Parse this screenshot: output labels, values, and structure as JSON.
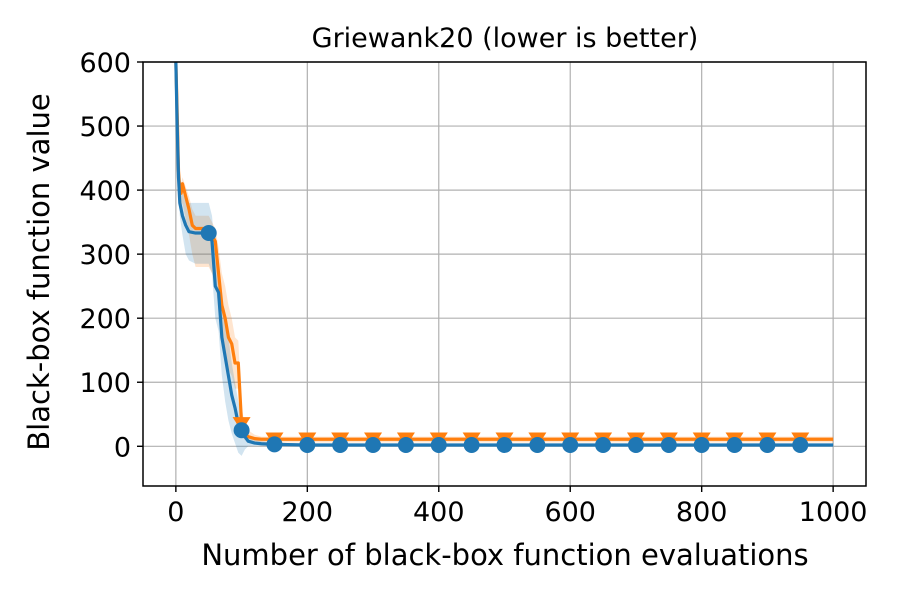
{
  "chart_data": {
    "type": "line",
    "title": "Griewank20 (lower is better)",
    "xlabel": "Number of black-box function evaluations",
    "ylabel": "Black-box function value",
    "xlim": [
      -50,
      1050
    ],
    "ylim": [
      -62,
      600
    ],
    "xticks": [
      0,
      200,
      400,
      600,
      800,
      1000
    ],
    "yticks": [
      0,
      100,
      200,
      300,
      400,
      500,
      600
    ],
    "grid": true,
    "legend": "none",
    "series": [
      {
        "color": "#ff7f0e",
        "marker": "triangle-down",
        "x": [
          0,
          2,
          4,
          6,
          8,
          10,
          20,
          25,
          30,
          40,
          50,
          55,
          60,
          65,
          70,
          75,
          80,
          85,
          90,
          95,
          100,
          105,
          110,
          120,
          130,
          150,
          200,
          300,
          400,
          500,
          600,
          700,
          800,
          900,
          1000
        ],
        "y": [
          600,
          520,
          430,
          400,
          395,
          410,
          370,
          345,
          340,
          340,
          340,
          330,
          320,
          270,
          220,
          200,
          170,
          160,
          130,
          130,
          35,
          20,
          15,
          12,
          11,
          11,
          11,
          11,
          11,
          11,
          11,
          11,
          11,
          11,
          11
        ],
        "marker_x": [
          100,
          150,
          200,
          250,
          300,
          350,
          400,
          450,
          500,
          550,
          600,
          650,
          700,
          750,
          800,
          850,
          900,
          950
        ],
        "band_upper": [
          600,
          540,
          460,
          420,
          410,
          420,
          390,
          370,
          360,
          360,
          360,
          350,
          340,
          310,
          270,
          250,
          220,
          200,
          170,
          165,
          60,
          35,
          25,
          18,
          15,
          15,
          15,
          15,
          15,
          15,
          15,
          15,
          15,
          15,
          15
        ],
        "band_lower": [
          600,
          500,
          400,
          380,
          370,
          380,
          330,
          300,
          280,
          280,
          280,
          270,
          260,
          210,
          160,
          140,
          120,
          110,
          90,
          90,
          15,
          10,
          8,
          7,
          6,
          6,
          6,
          6,
          6,
          6,
          6,
          6,
          6,
          6,
          6
        ]
      },
      {
        "color": "#1f77b4",
        "marker": "circle",
        "x": [
          0,
          2,
          4,
          6,
          8,
          10,
          15,
          20,
          30,
          40,
          50,
          55,
          60,
          65,
          70,
          75,
          80,
          85,
          90,
          95,
          100,
          105,
          110,
          120,
          130,
          150,
          200,
          300,
          400,
          500,
          600,
          700,
          800,
          900,
          1000
        ],
        "y": [
          600,
          500,
          420,
          380,
          370,
          360,
          345,
          335,
          333,
          333,
          333,
          320,
          250,
          240,
          170,
          140,
          110,
          80,
          60,
          35,
          25,
          15,
          8,
          5,
          4,
          3,
          2,
          2,
          2,
          2,
          2,
          2,
          2,
          2,
          2
        ],
        "marker_x": [
          50,
          100,
          150,
          200,
          250,
          300,
          350,
          400,
          450,
          500,
          550,
          600,
          650,
          700,
          750,
          800,
          850,
          900,
          950
        ],
        "band_upper": [
          600,
          520,
          440,
          410,
          400,
          395,
          385,
          380,
          380,
          380,
          380,
          360,
          300,
          290,
          230,
          210,
          170,
          130,
          100,
          70,
          50,
          30,
          15,
          10,
          8,
          6,
          4,
          4,
          4,
          4,
          4,
          4,
          4,
          4,
          4
        ],
        "band_lower": [
          600,
          480,
          400,
          360,
          345,
          330,
          300,
          290,
          285,
          285,
          285,
          270,
          200,
          180,
          110,
          70,
          40,
          20,
          5,
          -10,
          -15,
          -5,
          0,
          1,
          1,
          1,
          0,
          0,
          0,
          0,
          0,
          0,
          0,
          0,
          0
        ]
      }
    ]
  }
}
